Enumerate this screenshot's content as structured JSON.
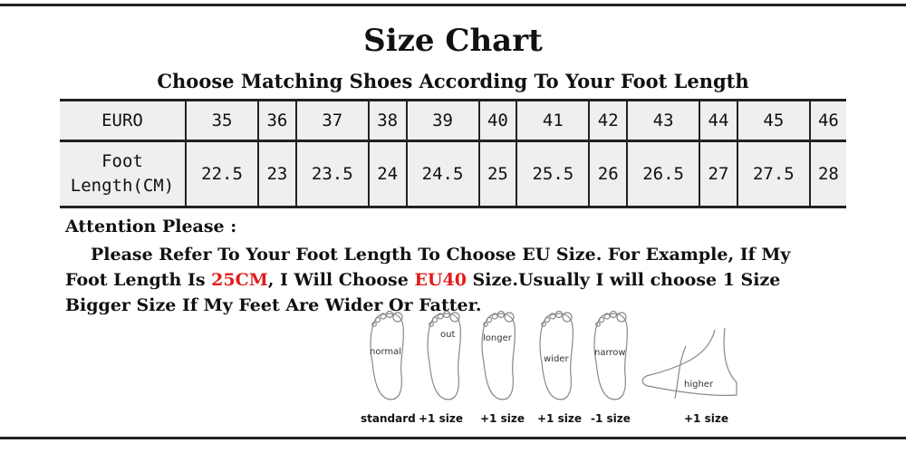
{
  "title": "Size Chart",
  "subtitle": "Choose Matching Shoes According To Your Foot Length",
  "table": {
    "row_headers": [
      "EURO",
      "Foot",
      "Length(CM)"
    ],
    "euro": [
      "35",
      "36",
      "37",
      "38",
      "39",
      "40",
      "41",
      "42",
      "43",
      "44",
      "45",
      "46"
    ],
    "foot_length_cm": [
      "22.5",
      "23",
      "23.5",
      "24",
      "24.5",
      "25",
      "25.5",
      "26",
      "26.5",
      "27",
      "27.5",
      "28"
    ]
  },
  "attention": {
    "heading": "Attention Please :",
    "text_1": "Please Refer To Your Foot Length To Choose EU Size. For Example, If My Foot Length Is ",
    "highlight_1": "25CM",
    "text_2": ", I Will Choose ",
    "highlight_2": "EU40",
    "text_3": " Size.Usually I will choose 1 Size Bigger Size If My Feet Are Wider Or Fatter.",
    "highlight_color": "#e21c1c"
  },
  "feet": [
    {
      "label": "normal",
      "caption": "standard"
    },
    {
      "label": "out",
      "caption": "+1 size"
    },
    {
      "label": "longer",
      "caption": "+1 size"
    },
    {
      "label": "wider",
      "caption": "+1 size"
    },
    {
      "label": "narrow",
      "caption": "-1 size"
    },
    {
      "label": "higher",
      "caption": "+1 size"
    }
  ]
}
